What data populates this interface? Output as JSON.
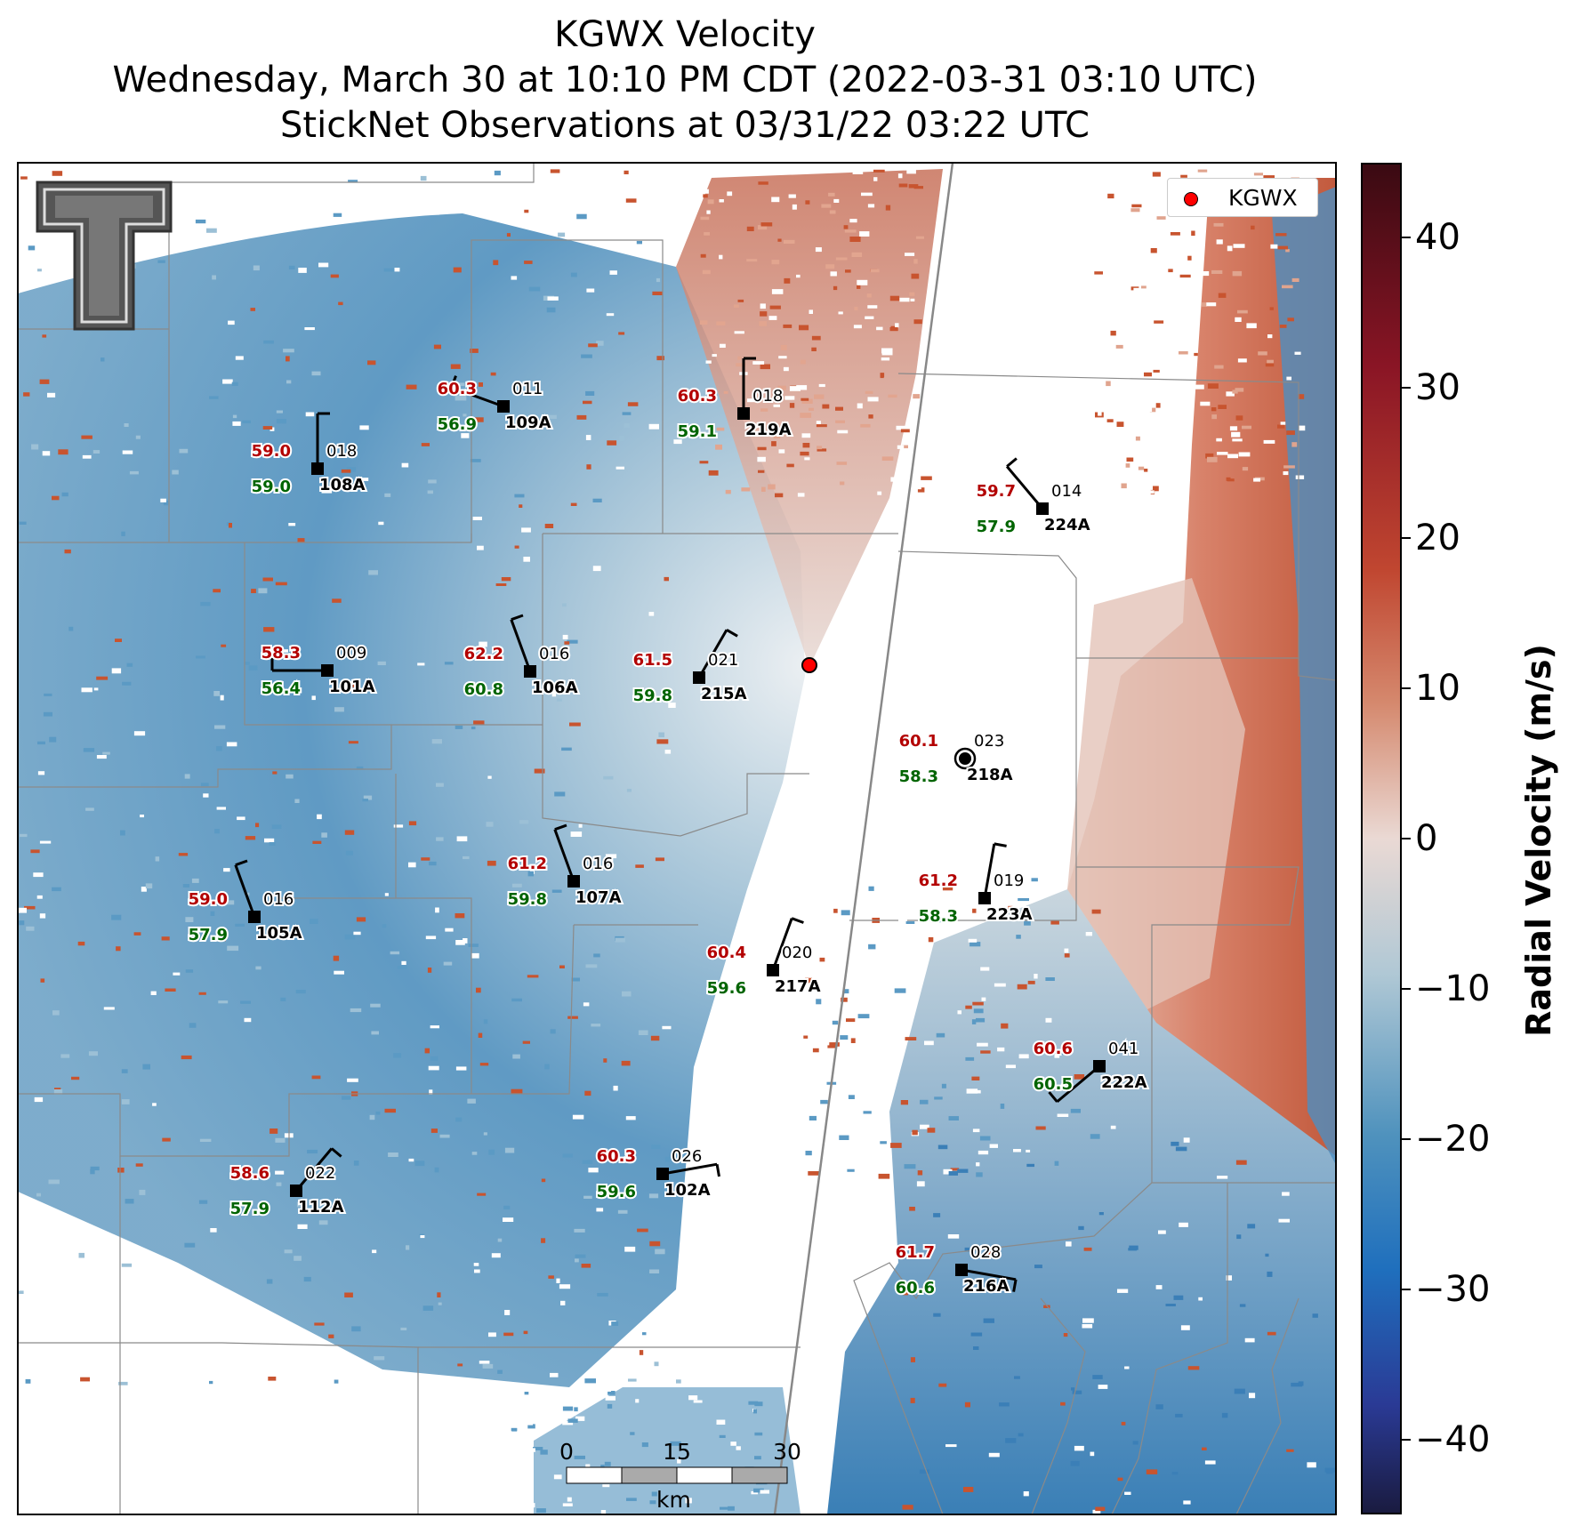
{
  "title": {
    "line1": "KGWX Velocity",
    "line2": "Wednesday, March 30 at 10:10 PM CDT (2022-03-31 03:10 UTC)",
    "line3": "StickNet Observations at 03/31/22 03:22 UTC"
  },
  "legend": {
    "label": "KGWX",
    "marker_color": "#ff0000"
  },
  "radar_site": {
    "name": "KGWX",
    "color": "#ff0000"
  },
  "logo": {
    "name": "Texas Tech double-T logo",
    "color": "#555555"
  },
  "colorbar": {
    "label": "Radial Velocity (m/s)",
    "range": [
      -45,
      45
    ],
    "ticks": [
      "40",
      "30",
      "20",
      "10",
      "0",
      "−10",
      "−20",
      "−30",
      "−40"
    ],
    "colors": [
      "#3a0a12",
      "#8a1525",
      "#c04630",
      "#d5896e",
      "#ead9d4",
      "#b0c8d5",
      "#4f92bd",
      "#1f6fbd",
      "#2a3a95",
      "#1a1b40"
    ]
  },
  "scalebar": {
    "labels": [
      "0",
      "15",
      "30"
    ],
    "unit": "km"
  },
  "colors": {
    "temperature": "#b30000",
    "dewpoint": "#006400",
    "inbound": "#4a8dbb",
    "outbound": "#c86a4e",
    "county_lines": "#8a8a8a"
  },
  "stations": [
    {
      "id": "109A",
      "temp": "60.3",
      "dew": "56.9",
      "dir": "011"
    },
    {
      "id": "219A",
      "temp": "60.3",
      "dew": "59.1",
      "dir": "018"
    },
    {
      "id": "108A",
      "temp": "59.0",
      "dew": "59.0",
      "dir": "018"
    },
    {
      "id": "224A",
      "temp": "59.7",
      "dew": "57.9",
      "dir": "014"
    },
    {
      "id": "101A",
      "temp": "58.3",
      "dew": "56.4",
      "dir": "009"
    },
    {
      "id": "106A",
      "temp": "62.2",
      "dew": "60.8",
      "dir": "016"
    },
    {
      "id": "215A",
      "temp": "61.5",
      "dew": "59.8",
      "dir": "021"
    },
    {
      "id": "218A",
      "temp": "60.1",
      "dew": "58.3",
      "dir": "023",
      "calm": true
    },
    {
      "id": "107A",
      "temp": "61.2",
      "dew": "59.8",
      "dir": "016"
    },
    {
      "id": "105A",
      "temp": "59.0",
      "dew": "57.9",
      "dir": "016"
    },
    {
      "id": "223A",
      "temp": "61.2",
      "dew": "58.3",
      "dir": "019"
    },
    {
      "id": "217A",
      "temp": "60.4",
      "dew": "59.6",
      "dir": "020"
    },
    {
      "id": "222A",
      "temp": "60.6",
      "dew": "60.5",
      "dir": "041"
    },
    {
      "id": "102A",
      "temp": "60.3",
      "dew": "59.6",
      "dir": "026"
    },
    {
      "id": "112A",
      "temp": "58.6",
      "dew": "57.9",
      "dir": "022"
    },
    {
      "id": "216A",
      "temp": "61.7",
      "dew": "60.6",
      "dir": "028"
    }
  ]
}
